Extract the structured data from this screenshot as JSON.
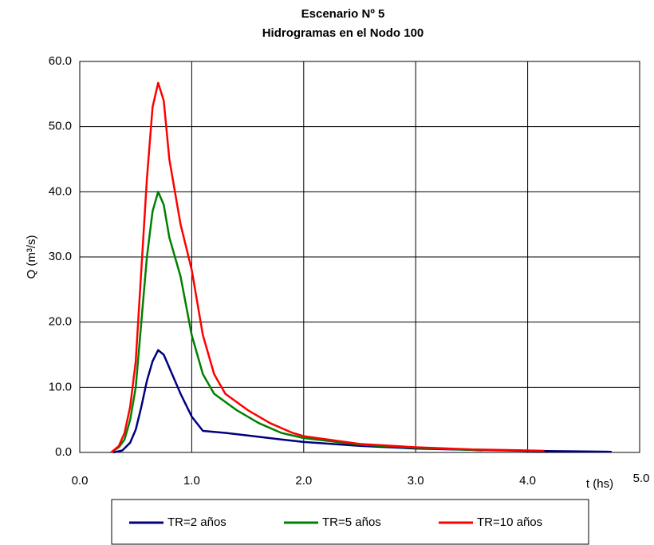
{
  "chart_data": {
    "type": "line",
    "title": "Escenario Nº 5",
    "subtitle": "Hidrogramas en el Nodo 100",
    "x_label": "t (hs)",
    "y_label": "Q (m³/s)",
    "xlim": [
      0,
      5
    ],
    "ylim": [
      0,
      60
    ],
    "xticks": [
      {
        "value": 0,
        "label": "0.0"
      },
      {
        "value": 1,
        "label": "1.0"
      },
      {
        "value": 2,
        "label": "2.0"
      },
      {
        "value": 3,
        "label": "3.0"
      },
      {
        "value": 4,
        "label": "4.0"
      },
      {
        "value": 5,
        "label": "5.0"
      }
    ],
    "yticks": [
      {
        "value": 0,
        "label": "0.0"
      },
      {
        "value": 10,
        "label": "10.0"
      },
      {
        "value": 20,
        "label": "20.0"
      },
      {
        "value": 30,
        "label": "30.0"
      },
      {
        "value": 40,
        "label": "40.0"
      },
      {
        "value": 50,
        "label": "50.0"
      },
      {
        "value": 60,
        "label": "60.0"
      }
    ],
    "grid": true,
    "legend": "bottom",
    "series": [
      {
        "name": "TR=2 años",
        "color": "#000080",
        "x": [
          0.3,
          0.38,
          0.45,
          0.5,
          0.55,
          0.6,
          0.65,
          0.7,
          0.75,
          0.8,
          0.9,
          1.0,
          1.1,
          1.3,
          1.5,
          1.8,
          2.0,
          2.5,
          3.0,
          3.5,
          4.0,
          4.5,
          4.75
        ],
        "values": [
          0,
          0.3,
          1.5,
          3.5,
          7,
          11,
          14,
          15.7,
          15,
          13,
          9,
          5.5,
          3.3,
          3.0,
          2.6,
          2.0,
          1.6,
          1.0,
          0.6,
          0.4,
          0.25,
          0.15,
          0.1
        ]
      },
      {
        "name": "TR=5 años",
        "color": "#008000",
        "x": [
          0.28,
          0.35,
          0.4,
          0.45,
          0.5,
          0.55,
          0.6,
          0.65,
          0.7,
          0.75,
          0.8,
          0.9,
          1.0,
          1.1,
          1.2,
          1.4,
          1.6,
          1.8,
          2.0,
          2.5,
          3.0,
          3.5,
          3.6
        ],
        "values": [
          0,
          0.8,
          2,
          5,
          10,
          20,
          30,
          37,
          40,
          38,
          33,
          27,
          18,
          12,
          9,
          6.5,
          4.5,
          3,
          2.2,
          1.2,
          0.7,
          0.4,
          0.3
        ]
      },
      {
        "name": "TR=10 años",
        "color": "#ff0000",
        "x": [
          0.28,
          0.35,
          0.4,
          0.45,
          0.5,
          0.55,
          0.6,
          0.65,
          0.7,
          0.75,
          0.8,
          0.9,
          1.0,
          1.1,
          1.2,
          1.3,
          1.5,
          1.7,
          1.9,
          2.0,
          2.5,
          3.0,
          3.5,
          4.0,
          4.15
        ],
        "values": [
          0,
          1,
          3,
          7,
          14,
          28,
          42,
          53,
          56.7,
          54,
          45,
          35,
          28,
          18,
          12,
          9,
          6.5,
          4.5,
          3,
          2.5,
          1.3,
          0.8,
          0.45,
          0.3,
          0.25
        ]
      }
    ]
  }
}
